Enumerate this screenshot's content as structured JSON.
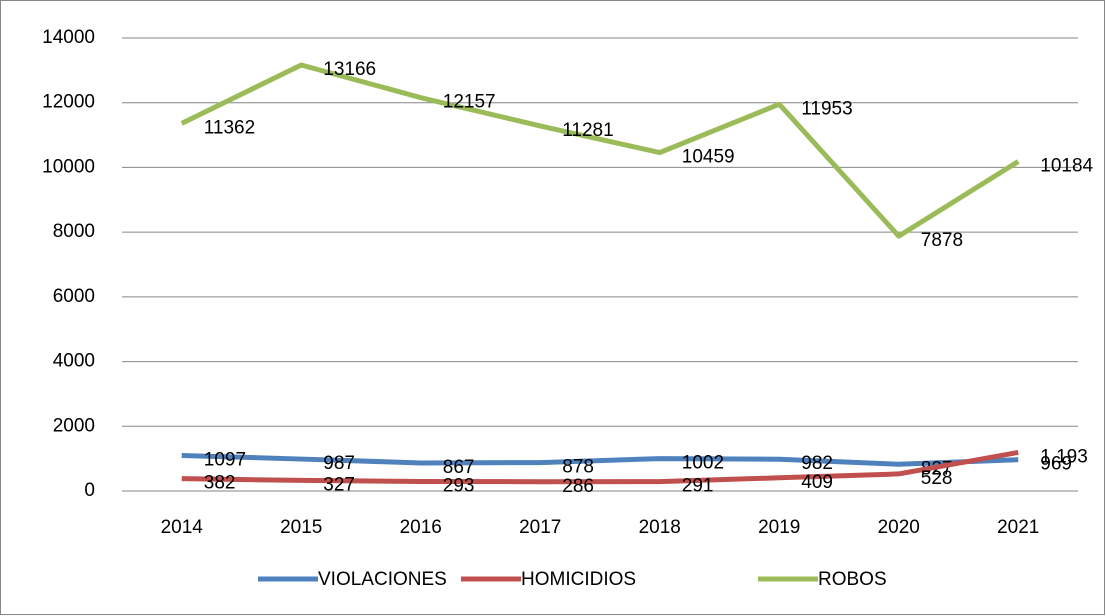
{
  "chart_data": {
    "type": "line",
    "categories": [
      "2014",
      "2015",
      "2016",
      "2017",
      "2018",
      "2019",
      "2020",
      "2021"
    ],
    "series": [
      {
        "name": "VIOLACIONES",
        "color": "#4f81bd",
        "values": [
          1097,
          987,
          867,
          878,
          1002,
          982,
          827,
          969
        ]
      },
      {
        "name": "HOMICIDIOS",
        "color": "#c0504d",
        "values": [
          382,
          327,
          293,
          286,
          291,
          409,
          528,
          1193
        ],
        "value_labels": [
          "382",
          "327",
          "293",
          "286",
          "291",
          "409",
          "528",
          "1,193"
        ]
      },
      {
        "name": "ROBOS",
        "color": "#9bbb59",
        "values": [
          11362,
          13166,
          12157,
          11281,
          10459,
          11953,
          7878,
          10184
        ]
      }
    ],
    "ylim": [
      0,
      14000
    ],
    "yticks": [
      0,
      2000,
      4000,
      6000,
      8000,
      10000,
      12000,
      14000
    ],
    "grid": true,
    "legend": "bottom"
  }
}
